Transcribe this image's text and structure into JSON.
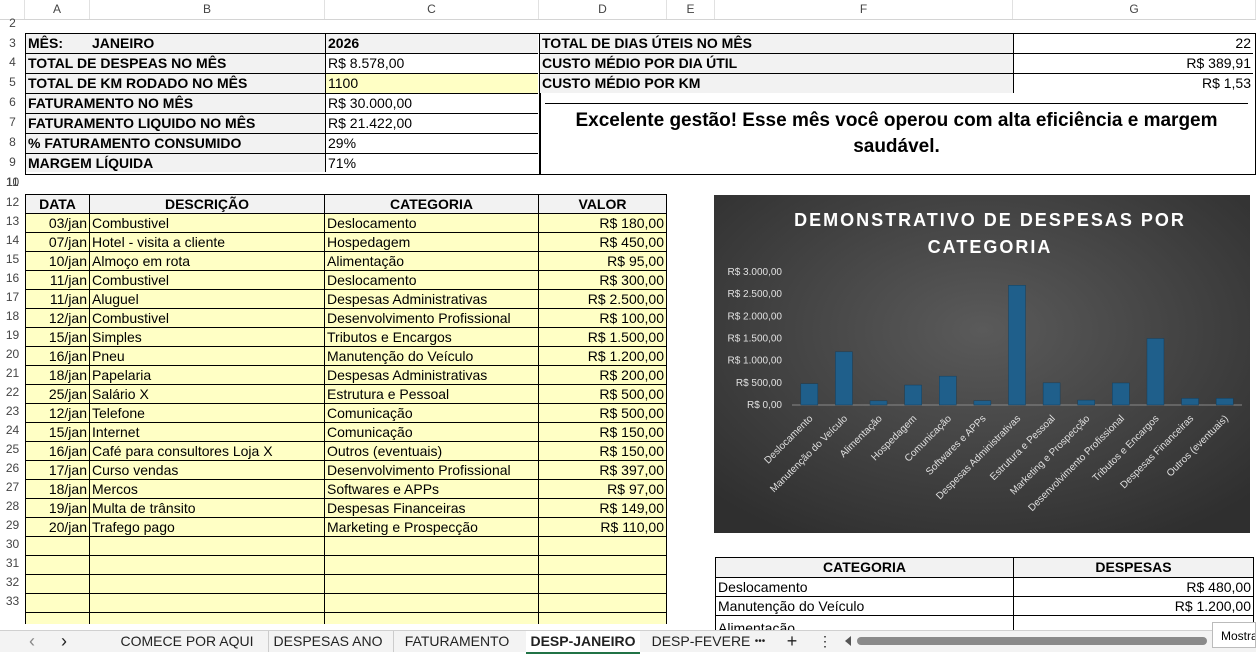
{
  "columns": [
    "A",
    "B",
    "C",
    "D",
    "E",
    "F",
    "G"
  ],
  "rows": [
    "2",
    "3",
    "4",
    "5",
    "6",
    "7",
    "8",
    "9",
    "10",
    "11",
    "12",
    "13",
    "14",
    "15",
    "16",
    "17",
    "18",
    "19",
    "20",
    "21",
    "22",
    "23",
    "24",
    "25",
    "26",
    "27",
    "28",
    "29",
    "30",
    "31",
    "32",
    "33"
  ],
  "summary": {
    "mes_label": "MÊS:",
    "mes_value": "JANEIRO",
    "ano": "2026",
    "r4_label": "TOTAL DE DESPEAS NO MÊS",
    "r4_value": "R$ 8.578,00",
    "r5_label": "TOTAL DE KM RODADO NO MÊS",
    "r5_value": "1100",
    "r6_label": "FATURAMENTO NO MÊS",
    "r6_value": "R$ 30.000,00",
    "r7_label": "FATURAMENTO LIQUIDO NO MÊS",
    "r7_value": "R$ 21.422,00",
    "r8_label": "% FATURAMENTO CONSUMIDO",
    "r8_value": "29%",
    "r9_label": "MARGEM LÍQUIDA",
    "r9_value": "71%",
    "dias_label": "TOTAL DE DIAS ÚTEIS NO MÊS",
    "dias_value": "22",
    "dia_label": "CUSTO MÉDIO POR DIA ÚTIL",
    "dia_value": "R$ 389,91",
    "km_label": "CUSTO MÉDIO POR KM",
    "km_value": "R$ 1,53",
    "message": "Excelente gestão! Esse mês você operou com alta eficiência e margem saudável."
  },
  "table": {
    "headers": [
      "DATA",
      "DESCRIÇÃO",
      "CATEGORIA",
      "VALOR"
    ],
    "rows": [
      [
        "03/jan",
        "Combustivel",
        "Deslocamento",
        "R$ 180,00"
      ],
      [
        "07/jan",
        "Hotel - visita a cliente",
        "Hospedagem",
        "R$ 450,00"
      ],
      [
        "10/jan",
        "Almoço em rota",
        "Alimentação",
        "R$ 95,00"
      ],
      [
        "11/jan",
        "Combustivel",
        "Deslocamento",
        "R$ 300,00"
      ],
      [
        "11/jan",
        "Aluguel",
        "Despesas Administrativas",
        "R$ 2.500,00"
      ],
      [
        "12/jan",
        "Combustivel",
        "Desenvolvimento Profissional",
        "R$ 100,00"
      ],
      [
        "15/jan",
        "Simples",
        "Tributos e Encargos",
        "R$ 1.500,00"
      ],
      [
        "16/jan",
        "Pneu",
        "Manutenção do Veículo",
        "R$ 1.200,00"
      ],
      [
        "18/jan",
        "Papelaria",
        "Despesas Administrativas",
        "R$ 200,00"
      ],
      [
        "25/jan",
        "Salário X",
        "Estrutura e Pessoal",
        "R$ 500,00"
      ],
      [
        "12/jan",
        "Telefone",
        "Comunicação",
        "R$ 500,00"
      ],
      [
        "15/jan",
        "Internet",
        "Comunicação",
        "R$ 150,00"
      ],
      [
        "16/jan",
        "Café para consultores Loja X",
        "Outros (eventuais)",
        "R$ 150,00"
      ],
      [
        "17/jan",
        "Curso vendas",
        "Desenvolvimento Profissional",
        "R$ 397,00"
      ],
      [
        "18/jan",
        "Mercos",
        "Softwares e APPs",
        "R$ 97,00"
      ],
      [
        "19/jan",
        "Multa de trânsito",
        "Despesas Financeiras",
        "R$ 149,00"
      ],
      [
        "20/jan",
        "Trafego pago",
        "Marketing e Prospecção",
        "R$ 110,00"
      ]
    ]
  },
  "cat_table": {
    "headers": [
      "CATEGORIA",
      "DESPESAS"
    ],
    "rows": [
      [
        "Deslocamento",
        "R$ 480,00"
      ],
      [
        "Manutenção do Veículo",
        "R$ 1.200,00"
      ],
      [
        "Alimentação",
        "R$"
      ]
    ]
  },
  "chart_data": {
    "type": "bar",
    "title": "DEMONSTRATIVO DE DESPESAS POR CATEGORIA",
    "categories": [
      "Deslocamento",
      "Manutenção do Veículo",
      "Alimentação",
      "Hospedagem",
      "Comunicação",
      "Softwares e APPs",
      "Despesas Administrativas",
      "Estrutura e Pessoal",
      "Marketing e Prospecção",
      "Desenvolvimento Profissional",
      "Tributos e Encargos",
      "Despesas Financeiras",
      "Outros (eventuais)"
    ],
    "values": [
      480,
      1200,
      95,
      450,
      650,
      97,
      2700,
      500,
      110,
      497,
      1500,
      149,
      150
    ],
    "ylim": [
      0,
      3000
    ],
    "yticks": [
      "R$ 0,00",
      "R$ 500,00",
      "R$ 1.000,00",
      "R$ 1.500,00",
      "R$ 2.000,00",
      "R$ 2.500,00",
      "R$ 3.000,00"
    ],
    "bar_color": "#1f5f8b",
    "background": "#404040"
  },
  "tabs": [
    "COMECE POR AQUI",
    "DESPESAS ANO",
    "FATURAMENTO",
    "DESP-JANEIRO",
    "DESP-FEVERE"
  ],
  "tab_more": "•••",
  "tab_add": "+",
  "tab_menu": "⋮",
  "nav_prev": "‹",
  "nav_next": "›",
  "status_text": "Mostra"
}
